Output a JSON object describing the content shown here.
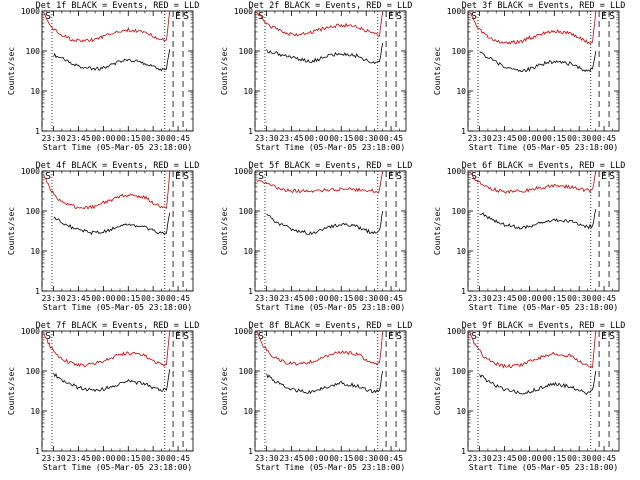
{
  "chart_data": [
    {
      "type": "line",
      "title": "Det 1f BLACK = Events, RED = LLD",
      "xlabel": "Start Time (05-Mar-05 23:18:00)",
      "ylabel": "Counts/sec",
      "yscale": "log",
      "ylim": [
        1,
        1000
      ],
      "x_ticks": [
        "23:30",
        "23:45",
        "00:00",
        "00:15",
        "00:30",
        "00:45"
      ],
      "y_ticks": [
        "1",
        "10",
        "100",
        "1000"
      ],
      "markers": [
        "S",
        "E",
        "S"
      ],
      "series": [
        {
          "color": "#000000",
          "x": [
            "23:30",
            "23:35",
            "23:45",
            "23:55",
            "00:00",
            "00:10",
            "00:15",
            "00:25",
            "00:30",
            "00:35",
            "00:38",
            "00:40"
          ],
          "values": [
            80,
            65,
            42,
            35,
            38,
            55,
            60,
            50,
            40,
            33,
            38,
            110
          ]
        },
        {
          "color": "#cc0000",
          "x": [
            "23:24",
            "23:28",
            "23:33",
            "23:40",
            "23:45",
            "23:55",
            "00:00",
            "00:10",
            "00:15",
            "00:25",
            "00:30",
            "00:35",
            "00:38",
            "00:40"
          ],
          "values": [
            900,
            450,
            280,
            200,
            180,
            190,
            230,
            320,
            340,
            300,
            230,
            190,
            180,
            1000
          ]
        }
      ]
    },
    {
      "type": "line",
      "title": "Det 2f BLACK = Events, RED = LLD",
      "xlabel": "Start Time (05-Mar-05 23:18:00)",
      "ylabel": "Counts/sec",
      "yscale": "log",
      "ylim": [
        1,
        1000
      ],
      "x_ticks": [
        "23:30",
        "23:45",
        "00:00",
        "00:15",
        "00:30",
        "00:45"
      ],
      "y_ticks": [
        "1",
        "10",
        "100",
        "1000"
      ],
      "markers": [
        "S",
        "E",
        "S"
      ],
      "series": [
        {
          "color": "#000000",
          "x": [
            "23:30",
            "23:35",
            "23:45",
            "23:55",
            "00:00",
            "00:10",
            "00:15",
            "00:25",
            "00:30",
            "00:35",
            "00:38",
            "00:40"
          ],
          "values": [
            100,
            90,
            70,
            55,
            60,
            80,
            85,
            75,
            60,
            50,
            55,
            160
          ]
        },
        {
          "color": "#cc0000",
          "x": [
            "23:24",
            "23:28",
            "23:33",
            "23:40",
            "23:45",
            "23:55",
            "00:00",
            "00:10",
            "00:15",
            "00:25",
            "00:30",
            "00:35",
            "00:38",
            "00:40"
          ],
          "values": [
            950,
            600,
            400,
            300,
            260,
            270,
            320,
            420,
            450,
            400,
            320,
            270,
            250,
            1000
          ]
        }
      ]
    },
    {
      "type": "line",
      "title": "Det 3f BLACK = Events, RED = LLD",
      "xlabel": "Start Time (05-Mar-05 23:18:00)",
      "ylabel": "Counts/sec",
      "yscale": "log",
      "ylim": [
        1,
        1000
      ],
      "x_ticks": [
        "23:30",
        "23:45",
        "00:00",
        "00:15",
        "00:30",
        "00:45"
      ],
      "y_ticks": [
        "1",
        "10",
        "100",
        "1000"
      ],
      "markers": [
        "S",
        "E",
        "S"
      ],
      "series": [
        {
          "color": "#000000",
          "x": [
            "23:30",
            "23:35",
            "23:45",
            "23:55",
            "00:00",
            "00:10",
            "00:15",
            "00:25",
            "00:30",
            "00:35",
            "00:38",
            "00:40"
          ],
          "values": [
            90,
            70,
            40,
            32,
            35,
            50,
            55,
            48,
            38,
            32,
            36,
            100
          ]
        },
        {
          "color": "#cc0000",
          "x": [
            "23:24",
            "23:28",
            "23:33",
            "23:40",
            "23:45",
            "23:55",
            "00:00",
            "00:10",
            "00:15",
            "00:25",
            "00:30",
            "00:35",
            "00:38",
            "00:40"
          ],
          "values": [
            900,
            450,
            250,
            180,
            160,
            170,
            210,
            290,
            310,
            280,
            210,
            170,
            160,
            1000
          ]
        }
      ]
    },
    {
      "type": "line",
      "title": "Det 4f BLACK = Events, RED = LLD",
      "xlabel": "Start Time (05-Mar-05 23:18:00)",
      "ylabel": "Counts/sec",
      "yscale": "log",
      "ylim": [
        1,
        1000
      ],
      "x_ticks": [
        "23:30",
        "23:45",
        "00:00",
        "00:15",
        "00:30",
        "00:45"
      ],
      "y_ticks": [
        "1",
        "10",
        "100",
        "1000"
      ],
      "markers": [
        "S",
        "E",
        "S"
      ],
      "series": [
        {
          "color": "#000000",
          "x": [
            "23:30",
            "23:35",
            "23:45",
            "23:55",
            "00:00",
            "00:10",
            "00:15",
            "00:25",
            "00:30",
            "00:35",
            "00:38",
            "00:40"
          ],
          "values": [
            70,
            50,
            33,
            28,
            30,
            42,
            48,
            40,
            32,
            28,
            30,
            90
          ]
        },
        {
          "color": "#cc0000",
          "x": [
            "23:24",
            "23:28",
            "23:33",
            "23:40",
            "23:45",
            "23:55",
            "00:00",
            "00:10",
            "00:15",
            "00:25",
            "00:30",
            "00:35",
            "00:38",
            "00:40"
          ],
          "values": [
            850,
            350,
            200,
            140,
            120,
            130,
            160,
            230,
            250,
            220,
            160,
            130,
            120,
            1000
          ]
        }
      ]
    },
    {
      "type": "line",
      "title": "Det 5f BLACK = Events, RED = LLD",
      "xlabel": "Start Time (05-Mar-05 23:18:00)",
      "ylabel": "Counts/sec",
      "yscale": "log",
      "ylim": [
        1,
        1000
      ],
      "x_ticks": [
        "23:30",
        "23:45",
        "00:00",
        "00:15",
        "00:30",
        "00:45"
      ],
      "y_ticks": [
        "1",
        "10",
        "100",
        "1000"
      ],
      "markers": [
        "S",
        "E",
        "S"
      ],
      "series": [
        {
          "color": "#000000",
          "x": [
            "23:30",
            "23:35",
            "23:45",
            "23:55",
            "00:00",
            "00:10",
            "00:15",
            "00:25",
            "00:30",
            "00:35",
            "00:38",
            "00:40"
          ],
          "values": [
            80,
            55,
            35,
            28,
            30,
            42,
            48,
            40,
            32,
            28,
            32,
            100
          ]
        },
        {
          "color": "#cc0000",
          "x": [
            "23:24",
            "23:28",
            "23:33",
            "23:40",
            "23:45",
            "23:55",
            "00:00",
            "00:10",
            "00:15",
            "00:25",
            "00:30",
            "00:35",
            "00:38",
            "00:40"
          ],
          "values": [
            600,
            500,
            420,
            350,
            320,
            310,
            320,
            340,
            350,
            340,
            330,
            320,
            310,
            1000
          ]
        }
      ]
    },
    {
      "type": "line",
      "title": "Det 6f BLACK = Events, RED = LLD",
      "xlabel": "Start Time (05-Mar-05 23:18:00)",
      "ylabel": "Counts/sec",
      "yscale": "log",
      "ylim": [
        1,
        1000
      ],
      "x_ticks": [
        "23:30",
        "23:45",
        "00:00",
        "00:15",
        "00:30",
        "00:45"
      ],
      "y_ticks": [
        "1",
        "10",
        "100",
        "1000"
      ],
      "markers": [
        "S",
        "E",
        "S"
      ],
      "series": [
        {
          "color": "#000000",
          "x": [
            "23:30",
            "23:35",
            "23:45",
            "23:55",
            "00:00",
            "00:10",
            "00:15",
            "00:25",
            "00:30",
            "00:35",
            "00:38",
            "00:40"
          ],
          "values": [
            90,
            70,
            45,
            38,
            40,
            55,
            60,
            55,
            45,
            40,
            42,
            110
          ]
        },
        {
          "color": "#cc0000",
          "x": [
            "23:24",
            "23:28",
            "23:33",
            "23:40",
            "23:45",
            "23:55",
            "00:00",
            "00:10",
            "00:15",
            "00:25",
            "00:30",
            "00:35",
            "00:38",
            "00:40"
          ],
          "values": [
            900,
            600,
            420,
            330,
            300,
            310,
            340,
            400,
            420,
            400,
            360,
            330,
            320,
            1000
          ]
        }
      ]
    },
    {
      "type": "line",
      "title": "Det 7f BLACK = Events, RED = LLD",
      "xlabel": "Start Time (05-Mar-05 23:18:00)",
      "ylabel": "Counts/sec",
      "yscale": "log",
      "ylim": [
        1,
        1000
      ],
      "x_ticks": [
        "23:30",
        "23:45",
        "00:00",
        "00:15",
        "00:30",
        "00:45"
      ],
      "y_ticks": [
        "1",
        "10",
        "100",
        "1000"
      ],
      "markers": [
        "S",
        "E",
        "S"
      ],
      "series": [
        {
          "color": "#000000",
          "x": [
            "23:30",
            "23:35",
            "23:45",
            "23:55",
            "00:00",
            "00:10",
            "00:15",
            "00:25",
            "00:30",
            "00:35",
            "00:38",
            "00:40"
          ],
          "values": [
            85,
            60,
            38,
            32,
            35,
            48,
            55,
            48,
            38,
            32,
            36,
            110
          ]
        },
        {
          "color": "#cc0000",
          "x": [
            "23:24",
            "23:28",
            "23:33",
            "23:40",
            "23:45",
            "23:55",
            "00:00",
            "00:10",
            "00:15",
            "00:25",
            "00:30",
            "00:35",
            "00:38",
            "00:40"
          ],
          "values": [
            900,
            400,
            230,
            160,
            140,
            150,
            180,
            260,
            280,
            250,
            180,
            150,
            140,
            1000
          ]
        }
      ]
    },
    {
      "type": "line",
      "title": "Det 8f BLACK = Events, RED = LLD",
      "xlabel": "Start Time (05-Mar-05 23:18:00)",
      "ylabel": "Counts/sec",
      "yscale": "log",
      "ylim": [
        1,
        1000
      ],
      "x_ticks": [
        "23:30",
        "23:45",
        "00:00",
        "00:15",
        "00:30",
        "00:45"
      ],
      "y_ticks": [
        "1",
        "10",
        "100",
        "1000"
      ],
      "markers": [
        "S",
        "E",
        "S"
      ],
      "series": [
        {
          "color": "#000000",
          "x": [
            "23:30",
            "23:35",
            "23:45",
            "23:55",
            "00:00",
            "00:10",
            "00:15",
            "00:25",
            "00:30",
            "00:35",
            "00:38",
            "00:40"
          ],
          "values": [
            80,
            55,
            35,
            30,
            32,
            45,
            50,
            42,
            34,
            30,
            34,
            100
          ]
        },
        {
          "color": "#cc0000",
          "x": [
            "23:24",
            "23:28",
            "23:33",
            "23:40",
            "23:45",
            "23:55",
            "00:00",
            "00:10",
            "00:15",
            "00:25",
            "00:30",
            "00:35",
            "00:38",
            "00:40"
          ],
          "values": [
            900,
            420,
            240,
            170,
            150,
            160,
            190,
            270,
            300,
            260,
            190,
            160,
            150,
            1000
          ]
        }
      ]
    },
    {
      "type": "line",
      "title": "Det 9f BLACK = Events, RED = LLD",
      "xlabel": "Start Time (05-Mar-05 23:18:00)",
      "ylabel": "Counts/sec",
      "yscale": "log",
      "ylim": [
        1,
        1000
      ],
      "x_ticks": [
        "23:30",
        "23:45",
        "00:00",
        "00:15",
        "00:30",
        "00:45"
      ],
      "y_ticks": [
        "1",
        "10",
        "100",
        "1000"
      ],
      "markers": [
        "S",
        "E",
        "S"
      ],
      "series": [
        {
          "color": "#000000",
          "x": [
            "23:30",
            "23:35",
            "23:45",
            "23:55",
            "00:00",
            "00:10",
            "00:15",
            "00:25",
            "00:30",
            "00:35",
            "00:38",
            "00:40"
          ],
          "values": [
            80,
            55,
            34,
            28,
            30,
            42,
            48,
            40,
            32,
            28,
            32,
            100
          ]
        },
        {
          "color": "#cc0000",
          "x": [
            "23:24",
            "23:28",
            "23:33",
            "23:40",
            "23:45",
            "23:55",
            "00:00",
            "00:10",
            "00:15",
            "00:25",
            "00:30",
            "00:35",
            "00:38",
            "00:40"
          ],
          "values": [
            900,
            400,
            220,
            150,
            130,
            140,
            170,
            250,
            270,
            240,
            170,
            140,
            130,
            1000
          ]
        }
      ]
    }
  ]
}
